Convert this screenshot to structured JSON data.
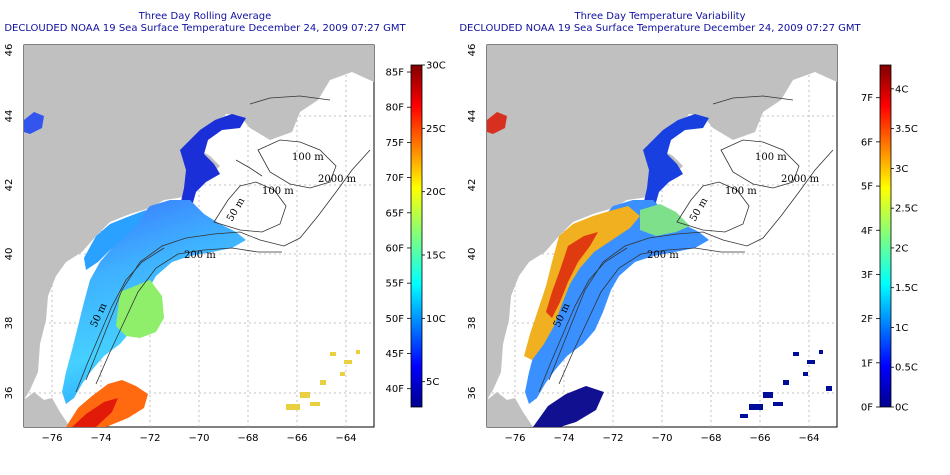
{
  "left_panel": {
    "title_line1": "Three Day Rolling Average",
    "title_line2": "DECLOUDED NOAA 19 Sea Surface Temperature December 24, 2009 07:27 GMT",
    "colorbar_min_c": 3,
    "colorbar_max_c": 30,
    "colorbar_labels_c": [
      "5C",
      "10C",
      "15C",
      "20C",
      "25C",
      "30C"
    ],
    "colorbar_labels_f": [
      "40F",
      "45F",
      "50F",
      "55F",
      "60F",
      "65F",
      "70F",
      "75F",
      "80F",
      "85F"
    ]
  },
  "right_panel": {
    "title_line1": "Three Day Temperature Variability",
    "title_line2": "DECLOUDED NOAA 19 Sea Surface Temperature December 24, 2009 07:27 GMT",
    "colorbar_min_c": 0,
    "colorbar_max_c": 4.3,
    "colorbar_labels_c": [
      "0C",
      "0.5C",
      "1C",
      "1.5C",
      "2C",
      "2.5C",
      "3C",
      "3.5C",
      "4C"
    ],
    "colorbar_labels_f": [
      "0F",
      "1F",
      "2F",
      "3F",
      "4F",
      "5F",
      "6F",
      "7F"
    ]
  },
  "axes": {
    "lon_ticks": [
      "−76",
      "−74",
      "−72",
      "−70",
      "−68",
      "−66",
      "−64"
    ],
    "lat_ticks": [
      "36",
      "38",
      "40",
      "42",
      "44",
      "46"
    ],
    "lon_range": [
      -77,
      -63
    ],
    "lat_range": [
      35,
      46
    ]
  },
  "contour_labels": [
    "100 m",
    "100 m",
    "2000 m",
    "50 m",
    "200 m",
    "50 m"
  ],
  "colors": {
    "land": "#c0c0c0",
    "title": "#1010a0",
    "grid": "#b0b0b0"
  }
}
